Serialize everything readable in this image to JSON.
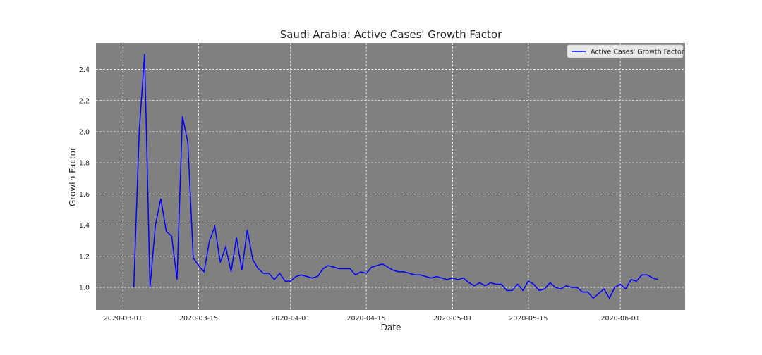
{
  "chart_data": {
    "type": "line",
    "title": "Saudi Arabia: Active Cases' Growth Factor",
    "xlabel": "Date",
    "ylabel": "Growth Factor",
    "x_ticks": [
      "2020-03-01",
      "2020-03-15",
      "2020-04-01",
      "2020-04-15",
      "2020-05-01",
      "2020-05-15",
      "2020-06-01"
    ],
    "y_ticks": [
      "1.0",
      "1.2",
      "1.4",
      "1.6",
      "1.8",
      "2.0",
      "2.2",
      "2.4"
    ],
    "xlim": [
      "2020-02-25",
      "2020-06-13"
    ],
    "ylim": [
      0.855,
      2.57
    ],
    "grid": true,
    "legend_position": "upper-right",
    "colors": {
      "plot_bg": "#808080",
      "line": "#0000ff",
      "grid": "#ffffff"
    },
    "series": [
      {
        "name": "Active Cases' Growth Factor",
        "start_date": "2020-03-03",
        "values": [
          1.0,
          2.0,
          2.5,
          1.0,
          1.4,
          1.57,
          1.36,
          1.33,
          1.05,
          2.1,
          1.93,
          1.19,
          1.14,
          1.1,
          1.3,
          1.39,
          1.16,
          1.26,
          1.1,
          1.32,
          1.11,
          1.37,
          1.18,
          1.12,
          1.09,
          1.09,
          1.05,
          1.09,
          1.04,
          1.04,
          1.07,
          1.08,
          1.07,
          1.06,
          1.07,
          1.12,
          1.14,
          1.13,
          1.12,
          1.12,
          1.12,
          1.08,
          1.1,
          1.09,
          1.13,
          1.14,
          1.15,
          1.13,
          1.11,
          1.1,
          1.1,
          1.09,
          1.08,
          1.08,
          1.07,
          1.06,
          1.07,
          1.06,
          1.05,
          1.06,
          1.05,
          1.06,
          1.03,
          1.01,
          1.03,
          1.01,
          1.03,
          1.02,
          1.02,
          0.98,
          0.98,
          1.02,
          0.98,
          1.04,
          1.02,
          0.98,
          0.99,
          1.03,
          1.0,
          0.99,
          1.01,
          1.0,
          1.0,
          0.97,
          0.97,
          0.93,
          0.96,
          0.99,
          0.93,
          1.0,
          1.02,
          0.99,
          1.05,
          1.04,
          1.08,
          1.08,
          1.06,
          1.05
        ]
      }
    ]
  }
}
